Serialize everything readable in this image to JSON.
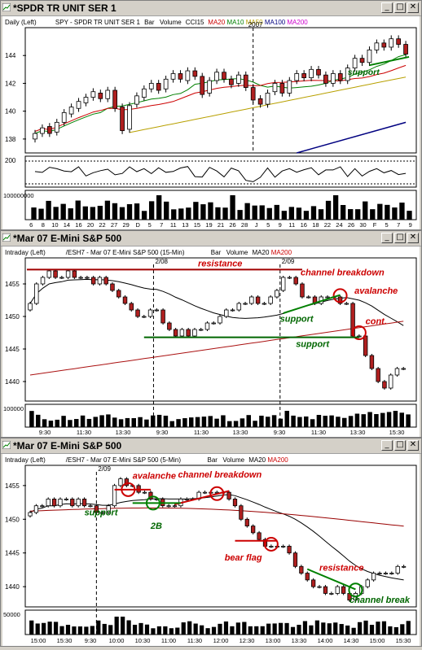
{
  "windows": [
    {
      "title": "*SPDR TR UNIT SER 1",
      "header": [
        {
          "text": "Daily  (Left)",
          "color": "#000000"
        },
        {
          "text": "SPY - SPDR TR UNIT SER 1",
          "color": "#000000"
        },
        {
          "text": "Bar",
          "color": "#000000"
        },
        {
          "text": "Volume",
          "color": "#000000"
        },
        {
          "text": "CCI15",
          "color": "#000000"
        },
        {
          "text": "MA20",
          "color": "#cc0000"
        },
        {
          "text": "MA10",
          "color": "#008000"
        },
        {
          "text": "MA50",
          "color": "#b8a000"
        },
        {
          "text": "MA100",
          "color": "#000080"
        },
        {
          "text": "MA200",
          "color": "#cc00cc"
        }
      ],
      "marker_label": "2007",
      "cci_label": "200",
      "volume_label": "100000000",
      "annotations": [
        "support"
      ],
      "x_labels": [
        "6",
        "8",
        "10",
        "14",
        "16",
        "20",
        "22",
        "27",
        "29",
        "D",
        "5",
        "7",
        "11",
        "13",
        "15",
        "19",
        "21",
        "26",
        "28",
        "J",
        "5",
        "9",
        "11",
        "16",
        "18",
        "22",
        "24",
        "26",
        "30",
        "F",
        "5",
        "7",
        "9"
      ],
      "chart_data": {
        "type": "candlestick",
        "title": "SPY - SPDR TR UNIT SER 1",
        "ylim": [
          137,
          146
        ],
        "yticks": [
          138,
          140,
          142,
          144
        ],
        "bars": [
          {
            "o": 138.0,
            "c": 138.4
          },
          {
            "o": 138.4,
            "c": 138.8
          },
          {
            "o": 138.9,
            "c": 138.4
          },
          {
            "o": 138.5,
            "c": 139.2
          },
          {
            "o": 139.2,
            "c": 139.9
          },
          {
            "o": 139.8,
            "c": 140.3
          },
          {
            "o": 140.2,
            "c": 140.7
          },
          {
            "o": 140.6,
            "c": 141.0
          },
          {
            "o": 141.0,
            "c": 141.4
          },
          {
            "o": 141.3,
            "c": 140.9
          },
          {
            "o": 140.9,
            "c": 141.5
          },
          {
            "o": 141.5,
            "c": 140.2
          },
          {
            "o": 140.3,
            "c": 138.6
          },
          {
            "o": 138.7,
            "c": 140.4
          },
          {
            "o": 140.5,
            "c": 141.1
          },
          {
            "o": 141.0,
            "c": 141.6
          },
          {
            "o": 141.6,
            "c": 142.0
          },
          {
            "o": 142.0,
            "c": 141.5
          },
          {
            "o": 141.6,
            "c": 142.3
          },
          {
            "o": 142.3,
            "c": 142.7
          },
          {
            "o": 142.7,
            "c": 142.3
          },
          {
            "o": 142.2,
            "c": 142.9
          },
          {
            "o": 142.9,
            "c": 142.5
          },
          {
            "o": 142.5,
            "c": 141.2
          },
          {
            "o": 141.3,
            "c": 142.2
          },
          {
            "o": 142.2,
            "c": 142.8
          },
          {
            "o": 142.8,
            "c": 142.3
          },
          {
            "o": 142.3,
            "c": 141.9
          },
          {
            "o": 142.0,
            "c": 142.6
          },
          {
            "o": 142.6,
            "c": 141.7
          },
          {
            "o": 141.7,
            "c": 140.8
          },
          {
            "o": 140.9,
            "c": 140.5
          },
          {
            "o": 140.5,
            "c": 141.3
          },
          {
            "o": 141.4,
            "c": 142.0
          },
          {
            "o": 142.0,
            "c": 141.3
          },
          {
            "o": 141.3,
            "c": 142.2
          },
          {
            "o": 142.2,
            "c": 142.7
          },
          {
            "o": 142.7,
            "c": 142.4
          },
          {
            "o": 142.4,
            "c": 143.0
          },
          {
            "o": 143.0,
            "c": 142.6
          },
          {
            "o": 142.6,
            "c": 142.0
          },
          {
            "o": 142.0,
            "c": 142.7
          },
          {
            "o": 142.7,
            "c": 142.2
          },
          {
            "o": 142.2,
            "c": 143.1
          },
          {
            "o": 143.1,
            "c": 143.8
          },
          {
            "o": 143.8,
            "c": 143.5
          },
          {
            "o": 143.5,
            "c": 144.4
          },
          {
            "o": 144.4,
            "c": 144.9
          },
          {
            "o": 144.9,
            "c": 144.6
          },
          {
            "o": 144.6,
            "c": 145.2
          },
          {
            "o": 145.2,
            "c": 144.8
          },
          {
            "o": 144.8,
            "c": 144.1
          }
        ]
      }
    },
    {
      "title": "*Mar 07  E-Mini S&P 500",
      "header": [
        {
          "text": "Intraday  (Left)",
          "color": "#000000"
        },
        {
          "text": "/ESH7 - Mar 07  E-Mini S&P 500  (15-Min)",
          "color": "#000000"
        },
        {
          "text": "Bar",
          "color": "#000000"
        },
        {
          "text": "Volume",
          "color": "#000000"
        },
        {
          "text": "MA20",
          "color": "#000000"
        },
        {
          "text": "MA200",
          "color": "#cc0000"
        }
      ],
      "date_labels": [
        "2/08",
        "2/09"
      ],
      "volume_label": "100000",
      "annotations": [
        "resistance",
        "channel breakdown",
        "avalanche",
        "support",
        "cont.",
        "support"
      ],
      "x_labels": [
        "9:30",
        "11:30",
        "13:30",
        "9:30",
        "11:30",
        "13:30",
        "9:30",
        "11:30",
        "13:30",
        "15:30"
      ],
      "chart_data": {
        "type": "candlestick",
        "title": "/ESH7 - Mar 07  E-Mini S&P 500  (15-Min)",
        "ylim": [
          1437,
          1459
        ],
        "yticks": [
          1440,
          1445,
          1450,
          1455
        ],
        "closes": [
          1452,
          1455,
          1456,
          1457,
          1456,
          1456,
          1457,
          1456,
          1456,
          1456,
          1455,
          1456,
          1455,
          1454,
          1453,
          1452,
          1451,
          1450,
          1450,
          1451,
          1451,
          1449,
          1448,
          1447,
          1448,
          1447,
          1448,
          1448,
          1449,
          1449,
          1450,
          1451,
          1451,
          1452,
          1452,
          1453,
          1452,
          1452,
          1453,
          1454,
          1456,
          1456,
          1455,
          1453,
          1453,
          1452,
          1453,
          1453,
          1453,
          1452,
          1452,
          1447,
          1447,
          1444,
          1442,
          1440,
          1439,
          1441,
          1442,
          1442
        ]
      }
    },
    {
      "title": "*Mar 07  E-Mini S&P 500",
      "header": [
        {
          "text": "Intraday  (Left)",
          "color": "#000000"
        },
        {
          "text": "/ESH7 - Mar 07  E-Mini S&P 500  (5-Min)",
          "color": "#000000"
        },
        {
          "text": "Bar",
          "color": "#000000"
        },
        {
          "text": "Volume",
          "color": "#000000"
        },
        {
          "text": "MA20",
          "color": "#000000"
        },
        {
          "text": "MA200",
          "color": "#cc0000"
        }
      ],
      "date_labels": [
        "2/09"
      ],
      "volume_label": "50000",
      "annotations": [
        "avalanche",
        "channel breakdown",
        "support",
        "2B",
        "bear flag",
        "resistance",
        "channel break"
      ],
      "x_labels": [
        "15:00",
        "15:30",
        "9:30",
        "10:00",
        "10:30",
        "11:00",
        "11:30",
        "12:00",
        "12:30",
        "13:00",
        "13:30",
        "14:00",
        "14:30",
        "15:00",
        "15:30"
      ],
      "chart_data": {
        "type": "candlestick",
        "title": "/ESH7 - Mar 07  E-Mini S&P 500  (5-Min)",
        "ylim": [
          1437,
          1458
        ],
        "yticks": [
          1440,
          1445,
          1450,
          1455
        ],
        "closes": [
          1451,
          1452,
          1452,
          1453,
          1452,
          1453,
          1453,
          1452,
          1453,
          1452,
          1452,
          1451,
          1451,
          1452,
          1455,
          1456,
          1455,
          1455,
          1454,
          1454,
          1453,
          1453,
          1452,
          1452,
          1452,
          1453,
          1453,
          1453,
          1454,
          1454,
          1454,
          1454,
          1454,
          1453,
          1452,
          1450,
          1449,
          1448,
          1447,
          1446,
          1446,
          1446,
          1446,
          1445,
          1443,
          1442,
          1441,
          1440,
          1440,
          1439,
          1439,
          1440,
          1439,
          1438,
          1439,
          1440,
          1441,
          1442,
          1442,
          1442,
          1442,
          1443,
          1443
        ]
      }
    }
  ]
}
